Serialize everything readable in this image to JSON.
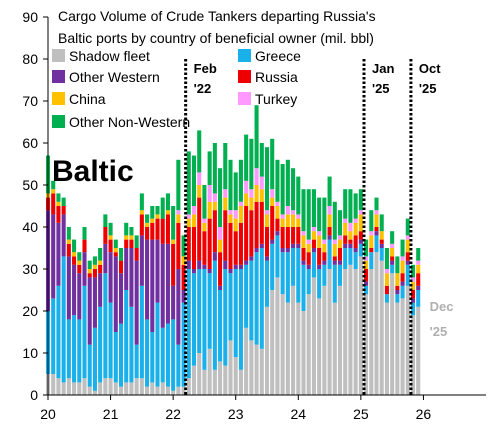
{
  "chart_data": {
    "type": "bar",
    "stacked": true,
    "title": [
      "Cargo Volume of Crude Tankers departing Russia's",
      "Baltic ports by country of beneficial owner (mil. bbl)"
    ],
    "region_label": "Baltic",
    "xlim": [
      20,
      27
    ],
    "ylim": [
      0,
      90
    ],
    "x_ticks": [
      20,
      21,
      22,
      23,
      24,
      25,
      26
    ],
    "x_tick_labels": [
      "20",
      "21",
      "22",
      "23",
      "24",
      "25",
      "26"
    ],
    "y_ticks": [
      0,
      10,
      20,
      30,
      40,
      50,
      60,
      70,
      80,
      90
    ],
    "y_tick_labels": [
      "0",
      "10",
      "20",
      "30",
      "40",
      "50",
      "60",
      "70",
      "80",
      "90"
    ],
    "grid": false,
    "legend_position": "top-left",
    "series_order": [
      "Shadow fleet",
      "Greece",
      "Other Western",
      "Russia",
      "China",
      "Turkey",
      "Other Non-Western"
    ],
    "series_colors": {
      "Shadow fleet": "#bfbfbf",
      "Greece": "#1ab0ea",
      "Other Western": "#7030a0",
      "Russia": "#ee0000",
      "China": "#ffc000",
      "Turkey": "#ff99ff",
      "Other Non-Western": "#00b050"
    },
    "legend": [
      {
        "name": "Shadow fleet",
        "color": "#bfbfbf"
      },
      {
        "name": "Greece",
        "color": "#1ab0ea"
      },
      {
        "name": "Other Western",
        "color": "#7030a0"
      },
      {
        "name": "Russia",
        "color": "#ee0000"
      },
      {
        "name": "China",
        "color": "#ffc000"
      },
      {
        "name": "Turkey",
        "color": "#ff99ff"
      },
      {
        "name": "Other Non-Western",
        "color": "#00b050"
      }
    ],
    "events": [
      {
        "x": 22.2,
        "label": [
          "Feb",
          "'22"
        ]
      },
      {
        "x": 25.05,
        "label": [
          "Jan",
          "'25"
        ]
      },
      {
        "x": 25.8,
        "label": [
          "Oct",
          "'25"
        ]
      }
    ],
    "end_label": {
      "x": 26.1,
      "y": 20,
      "lines": [
        "Dec",
        "'25"
      ]
    },
    "bar_spacing": 0.0833,
    "x": [
      20.0,
      20.0833,
      20.1667,
      20.25,
      20.3333,
      20.4167,
      20.5,
      20.5833,
      20.6667,
      20.75,
      20.8333,
      20.9167,
      21.0,
      21.0833,
      21.1667,
      21.25,
      21.3333,
      21.4167,
      21.5,
      21.5833,
      21.6667,
      21.75,
      21.8333,
      21.9167,
      22.0,
      22.0833,
      22.1667,
      22.25,
      22.3333,
      22.4167,
      22.5,
      22.5833,
      22.6667,
      22.75,
      22.8333,
      22.9167,
      23.0,
      23.0833,
      23.1667,
      23.25,
      23.3333,
      23.4167,
      23.5,
      23.5833,
      23.6667,
      23.75,
      23.8333,
      23.9167,
      24.0,
      24.0833,
      24.1667,
      24.25,
      24.3333,
      24.4167,
      24.5,
      24.5833,
      24.6667,
      24.75,
      24.8333,
      24.9167,
      25.0,
      25.0833,
      25.1667,
      25.25,
      25.3333,
      25.4167,
      25.5,
      25.5833,
      25.6667,
      25.75,
      25.8333,
      25.9167
    ],
    "series": [
      {
        "name": "Shadow fleet",
        "values": [
          5,
          5,
          4,
          3,
          4,
          3,
          3,
          4,
          2,
          1,
          3,
          4,
          4,
          3,
          2,
          3,
          3,
          4,
          4,
          2,
          3,
          2,
          3,
          2,
          1,
          2,
          2,
          4,
          7,
          10,
          6,
          11,
          6,
          8,
          7,
          13,
          9,
          6,
          16,
          13,
          12,
          11,
          21,
          25,
          28,
          24,
          22,
          26,
          22,
          20,
          24,
          28,
          23,
          26,
          30,
          22,
          26,
          30,
          31,
          30,
          33,
          24,
          30,
          34,
          32,
          22,
          29,
          22,
          23,
          26,
          19,
          21
        ]
      },
      {
        "name": "Greece",
        "values": [
          15,
          18,
          22,
          30,
          14,
          16,
          15,
          22,
          10,
          15,
          18,
          25,
          18,
          12,
          15,
          22,
          18,
          8,
          22,
          16,
          12,
          20,
          13,
          15,
          17,
          10,
          20,
          26,
          22,
          20,
          24,
          18,
          26,
          17,
          23,
          16,
          21,
          24,
          15,
          19,
          22,
          24,
          11,
          11,
          10,
          10,
          12,
          9,
          13,
          11,
          6,
          6,
          7,
          5,
          7,
          9,
          5,
          5,
          4,
          4,
          3,
          2,
          4,
          4,
          3,
          2,
          2,
          2,
          3,
          5,
          3,
          4
        ]
      },
      {
        "name": "Other Western",
        "values": [
          24,
          20,
          15,
          10,
          15,
          12,
          11,
          8,
          16,
          12,
          8,
          7,
          12,
          18,
          12,
          10,
          14,
          20,
          12,
          19,
          22,
          15,
          20,
          19,
          8,
          18,
          3,
          2,
          1,
          2,
          1,
          1,
          2,
          1,
          2,
          1,
          1,
          1,
          1,
          1,
          1,
          1,
          1,
          1,
          1,
          1,
          1,
          1,
          1,
          1,
          1,
          1,
          1,
          1,
          1,
          1,
          1,
          1,
          1,
          1,
          1,
          1,
          0,
          1,
          1,
          0,
          1,
          1,
          1,
          1,
          1,
          1
        ]
      },
      {
        "name": "Russia",
        "values": [
          3,
          5,
          4,
          2,
          3,
          2,
          2,
          3,
          1,
          2,
          2,
          4,
          3,
          1,
          3,
          2,
          2,
          3,
          5,
          3,
          4,
          5,
          6,
          7,
          10,
          11,
          6,
          8,
          10,
          15,
          8,
          12,
          10,
          8,
          12,
          11,
          8,
          10,
          13,
          11,
          11,
          10,
          7,
          8,
          3,
          5,
          5,
          4,
          4,
          3,
          3,
          2,
          4,
          2,
          2,
          1,
          3,
          2,
          1,
          3,
          2,
          3,
          1,
          1,
          1,
          2,
          1,
          1,
          2,
          2,
          2,
          3
        ]
      },
      {
        "name": "China",
        "values": [
          1,
          1,
          1,
          0,
          1,
          1,
          1,
          0,
          1,
          1,
          1,
          0,
          1,
          1,
          0,
          1,
          1,
          0,
          1,
          1,
          1,
          1,
          0,
          1,
          1,
          2,
          2,
          2,
          3,
          3,
          2,
          4,
          2,
          3,
          3,
          2,
          3,
          4,
          3,
          3,
          4,
          3,
          3,
          2,
          3,
          2,
          3,
          3,
          2,
          3,
          2,
          2,
          3,
          2,
          3,
          3,
          2,
          3,
          2,
          3,
          4,
          2,
          3,
          3,
          2,
          3,
          2,
          3,
          3,
          3,
          2,
          2
        ]
      },
      {
        "name": "Turkey",
        "values": [
          0,
          0,
          0,
          0,
          0,
          0,
          0,
          0,
          0,
          0,
          0,
          0,
          0,
          0,
          0,
          0,
          0,
          0,
          0,
          0,
          0,
          0,
          0,
          0,
          0,
          1,
          0,
          1,
          2,
          3,
          1,
          4,
          2,
          3,
          2,
          1,
          2,
          1,
          3,
          2,
          4,
          3,
          1,
          2,
          1,
          1,
          2,
          1,
          1,
          1,
          1,
          1,
          1,
          1,
          2,
          1,
          1,
          1,
          2,
          1,
          1,
          1,
          1,
          1,
          0,
          1,
          1,
          0,
          1,
          1,
          1,
          1
        ]
      },
      {
        "name": "Other Non-Western",
        "values": [
          9,
          2,
          2,
          2,
          3,
          3,
          2,
          3,
          2,
          2,
          3,
          3,
          3,
          2,
          3,
          3,
          2,
          3,
          4,
          2,
          3,
          2,
          5,
          4,
          8,
          12,
          5,
          15,
          12,
          10,
          8,
          8,
          12,
          14,
          11,
          12,
          9,
          10,
          11,
          12,
          15,
          8,
          15,
          12,
          10,
          12,
          11,
          10,
          9,
          10,
          12,
          9,
          8,
          10,
          7,
          9,
          6,
          7,
          8,
          6,
          5,
          4,
          5,
          3,
          4,
          5,
          3,
          4,
          4,
          4,
          3,
          3
        ]
      }
    ]
  }
}
